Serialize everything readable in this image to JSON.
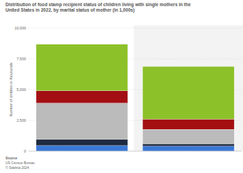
{
  "chart_data": {
    "type": "bar",
    "stacked": true,
    "title": "Distribution of food stamp recipient status of children living with single mothers in the United States in 2022, by marital status of mother (in 1,000s)",
    "y_label": "Number of children in thousands",
    "source": [
      "Source",
      "US Census Bureau",
      "© Statista 2024"
    ],
    "categories": [
      null,
      null
    ],
    "series": [
      {
        "color": "#3a78d6",
        "values": [
          450,
          400
        ]
      },
      {
        "color": "#1e2b40",
        "values": [
          500,
          200
        ]
      },
      {
        "color": "#bbbbbb",
        "values": [
          2950,
          1170
        ]
      },
      {
        "color": "#a30f12",
        "values": [
          1000,
          830
        ]
      },
      {
        "color": "#8cc12a",
        "values": [
          3780,
          4280
        ]
      }
    ],
    "ylim": [
      0,
      10000
    ],
    "yticks": [
      0,
      {
        "value": 2500,
        "label": "2,500"
      },
      {
        "value": 5000,
        "label": "5,000"
      },
      {
        "value": 7500,
        "label": "7,500"
      },
      {
        "value": 10000,
        "label": "10,000"
      }
    ],
    "grid": true,
    "legend": false
  }
}
